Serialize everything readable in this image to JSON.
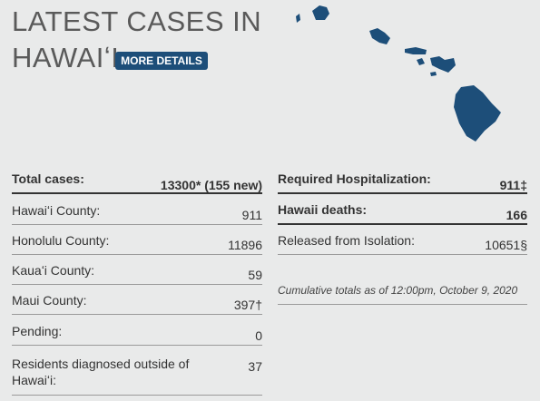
{
  "header": {
    "title_line1": "LATEST CASES IN",
    "title_line2": "HAWAIʻI",
    "button": "MORE DETAILS"
  },
  "left": {
    "rows": [
      {
        "label": "Total cases:",
        "value": "13300* (155 new)"
      },
      {
        "label": "Hawaiʻi County:",
        "value": "911"
      },
      {
        "label": "Honolulu County:",
        "value": "11896"
      },
      {
        "label": "Kauaʻi County:",
        "value": "59"
      },
      {
        "label": "Maui County:",
        "value": "397†"
      },
      {
        "label": "Pending:",
        "value": "0"
      },
      {
        "label": "Residents diagnosed outside of Hawaiʻi:",
        "value": "37"
      }
    ]
  },
  "right": {
    "rows": [
      {
        "label": "Required Hospitalization:",
        "value": "911‡"
      },
      {
        "label": "Hawaii deaths:",
        "value": "166"
      },
      {
        "label": "Released from Isolation:",
        "value": "10651§"
      }
    ]
  },
  "note": "Cumulative totals as of 12:00pm, October 9, 2020"
}
